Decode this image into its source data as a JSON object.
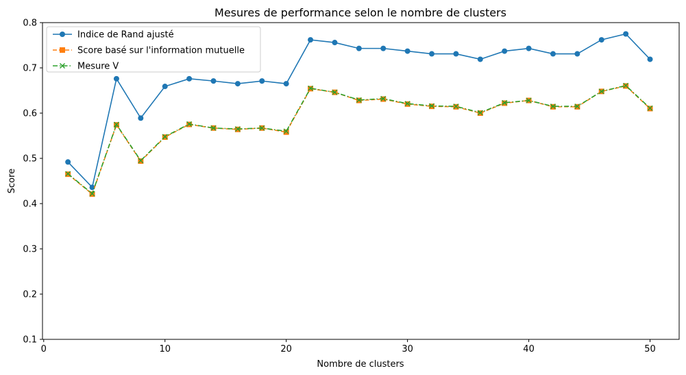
{
  "chart_data": {
    "type": "line",
    "title": "Mesures de performance selon le nombre de clusters",
    "xlabel": "Nombre de clusters",
    "ylabel": "Score",
    "xlim": [
      -0.1,
      52.4
    ],
    "ylim": [
      0.1,
      0.8
    ],
    "xticks": [
      0,
      10,
      20,
      30,
      40,
      50
    ],
    "yticks": [
      0.1,
      0.2,
      0.3,
      0.4,
      0.5,
      0.6,
      0.7,
      0.8
    ],
    "xtick_labels": [
      "0",
      "10",
      "20",
      "30",
      "40",
      "50"
    ],
    "ytick_labels": [
      "0.1",
      "0.2",
      "0.3",
      "0.4",
      "0.5",
      "0.6",
      "0.7",
      "0.8"
    ],
    "grid": false,
    "legend_position": "upper-left",
    "x": [
      2,
      4,
      6,
      8,
      10,
      12,
      14,
      16,
      18,
      20,
      22,
      24,
      26,
      28,
      30,
      32,
      34,
      36,
      38,
      40,
      42,
      44,
      46,
      48,
      50
    ],
    "series": [
      {
        "name": "Indice de Rand ajusté",
        "color": "#1f77b4",
        "marker": "circle",
        "linestyle": "solid",
        "values": [
          0.492,
          0.436,
          0.676,
          0.589,
          0.659,
          0.676,
          0.671,
          0.665,
          0.671,
          0.665,
          0.762,
          0.756,
          0.743,
          0.743,
          0.737,
          0.731,
          0.731,
          0.719,
          0.737,
          0.743,
          0.731,
          0.731,
          0.762,
          0.775,
          0.719
        ]
      },
      {
        "name": "Score basé sur l'information mutuelle",
        "color": "#ff7f0e",
        "marker": "square",
        "linestyle": "dashed",
        "values": [
          0.465,
          0.421,
          0.574,
          0.494,
          0.547,
          0.575,
          0.567,
          0.564,
          0.567,
          0.558,
          0.654,
          0.646,
          0.628,
          0.631,
          0.62,
          0.615,
          0.614,
          0.6,
          0.622,
          0.628,
          0.614,
          0.614,
          0.648,
          0.66,
          0.61
        ]
      },
      {
        "name": "Mesure V",
        "color": "#2ca02c",
        "marker": "x",
        "linestyle": "dashdot",
        "values": [
          0.466,
          0.422,
          0.575,
          0.495,
          0.548,
          0.576,
          0.567,
          0.565,
          0.567,
          0.56,
          0.655,
          0.646,
          0.629,
          0.632,
          0.621,
          0.616,
          0.615,
          0.601,
          0.623,
          0.628,
          0.615,
          0.615,
          0.648,
          0.661,
          0.611
        ]
      }
    ]
  }
}
